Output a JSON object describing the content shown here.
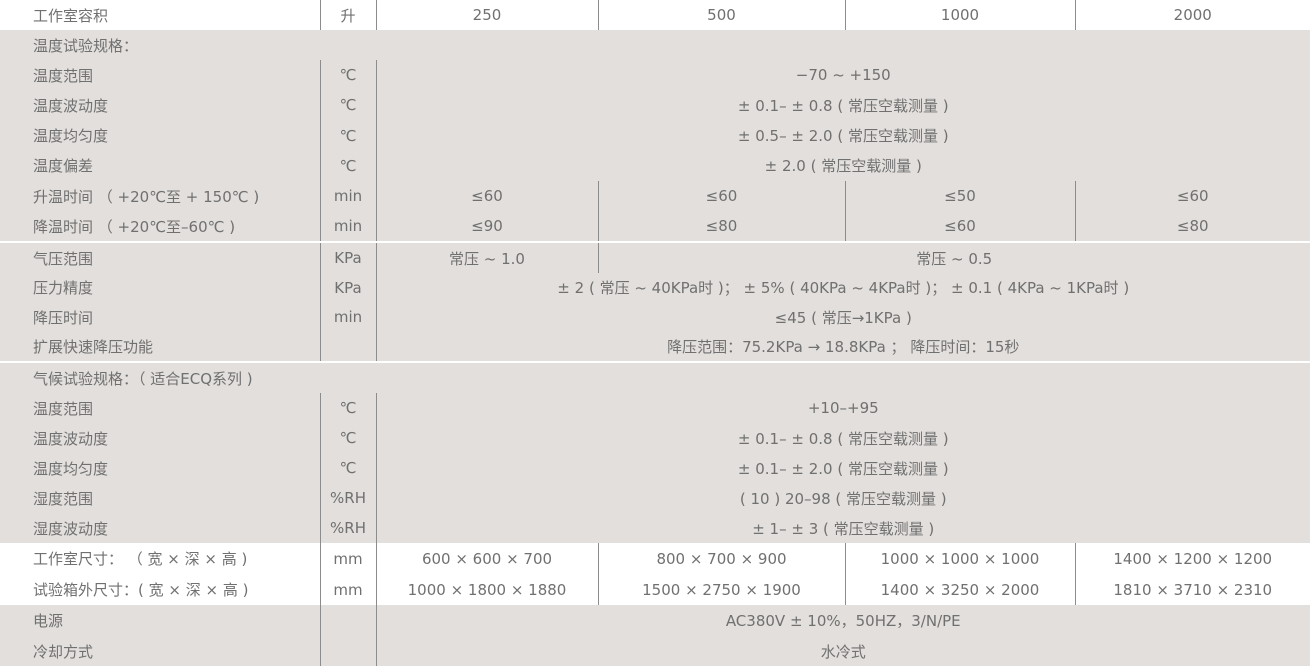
{
  "theme": {
    "gray": "#e2dfdc",
    "white": "#ffffff",
    "text": "#707070",
    "line": "#8c8c8c"
  },
  "groups": [
    {
      "shade": "white",
      "rows": [
        {
          "label": "工作室容积",
          "unit": "升",
          "values": [
            "250",
            "500",
            "1000",
            "2000"
          ]
        }
      ]
    },
    {
      "shade": "gray",
      "rows": [
        {
          "title": "温度试验规格："
        },
        {
          "label": "温度范围",
          "unit": "℃",
          "values": [
            "−70 ~ +150"
          ]
        },
        {
          "label": "温度波动度",
          "unit": "℃",
          "values": [
            "± 0.1– ± 0.8 ( 常压空载测量 )"
          ]
        },
        {
          "label": "温度均匀度",
          "unit": "℃",
          "values": [
            "± 0.5– ± 2.0 ( 常压空载测量 )"
          ]
        },
        {
          "label": "温度偏差",
          "unit": "℃",
          "values": [
            "± 2.0 ( 常压空载测量 )"
          ]
        },
        {
          "label": "升温时间 （ +20℃至 + 150℃ )",
          "unit": "min",
          "values": [
            "≤60",
            "≤60",
            "≤50",
            "≤60"
          ]
        },
        {
          "label": "降温时间 （ +20℃至–60℃ )",
          "unit": "min",
          "values": [
            "≤90",
            "≤80",
            "≤60",
            "≤80"
          ]
        }
      ]
    },
    {
      "shade": "gray",
      "rows": [
        {
          "label": "气压范围",
          "unit": "KPa",
          "values": [
            "常压 ~ 1.0",
            "常压 ~ 0.5"
          ]
        },
        {
          "label": "压力精度",
          "unit": "KPa",
          "values": [
            "± 2 ( 常压 ~ 40KPa时 )； ± 5% ( 40KPa ~ 4KPa时 )； ± 0.1 ( 4KPa ~ 1KPa时 )"
          ]
        },
        {
          "label": "降压时间",
          "unit": "min",
          "values": [
            "≤45 ( 常压→1KPa )"
          ]
        },
        {
          "label": "扩展快速降压功能",
          "unit": "",
          "values": [
            "降压范围：75.2KPa → 18.8KPa ； 降压时间：15秒"
          ]
        }
      ]
    },
    {
      "shade": "gray",
      "rows": [
        {
          "title": "气候试验规格：（ 适合ECQ系列 )"
        },
        {
          "label": "温度范围",
          "unit": "℃",
          "values": [
            "+10–+95"
          ]
        },
        {
          "label": "温度波动度",
          "unit": "℃",
          "values": [
            "± 0.1– ± 0.8 ( 常压空载测量 )"
          ]
        },
        {
          "label": "温度均匀度",
          "unit": "℃",
          "values": [
            "± 0.1– ± 2.0 ( 常压空载测量 )"
          ]
        },
        {
          "label": "湿度范围",
          "unit": "%RH",
          "values": [
            "( 10 ) 20–98 ( 常压空载测量 )"
          ]
        },
        {
          "label": "湿度波动度",
          "unit": "%RH",
          "values": [
            "± 1– ± 3 ( 常压空载测量 )"
          ]
        }
      ]
    },
    {
      "shade": "white",
      "rows": [
        {
          "label": "工作室尺寸：  （ 宽 × 深 × 高 )",
          "unit": "mm",
          "values": [
            "600 × 600 × 700",
            "800 × 700 × 900",
            "1000 × 1000 × 1000",
            "1400 × 1200 × 1200"
          ]
        },
        {
          "label": "试验箱外尺寸：( 宽 × 深 × 高 )",
          "unit": "mm",
          "values": [
            "1000 × 1800 × 1880",
            "1500 × 2750 × 1900",
            "1400 × 3250 × 2000",
            "1810 × 3710 × 2310"
          ]
        }
      ]
    },
    {
      "shade": "gray",
      "rows": [
        {
          "label": "电源",
          "unit": "",
          "values": [
            "AC380V ± 10%，50HZ，3/N/PE"
          ]
        },
        {
          "label": "冷却方式",
          "unit": "",
          "values": [
            "水冷式"
          ]
        }
      ]
    }
  ]
}
